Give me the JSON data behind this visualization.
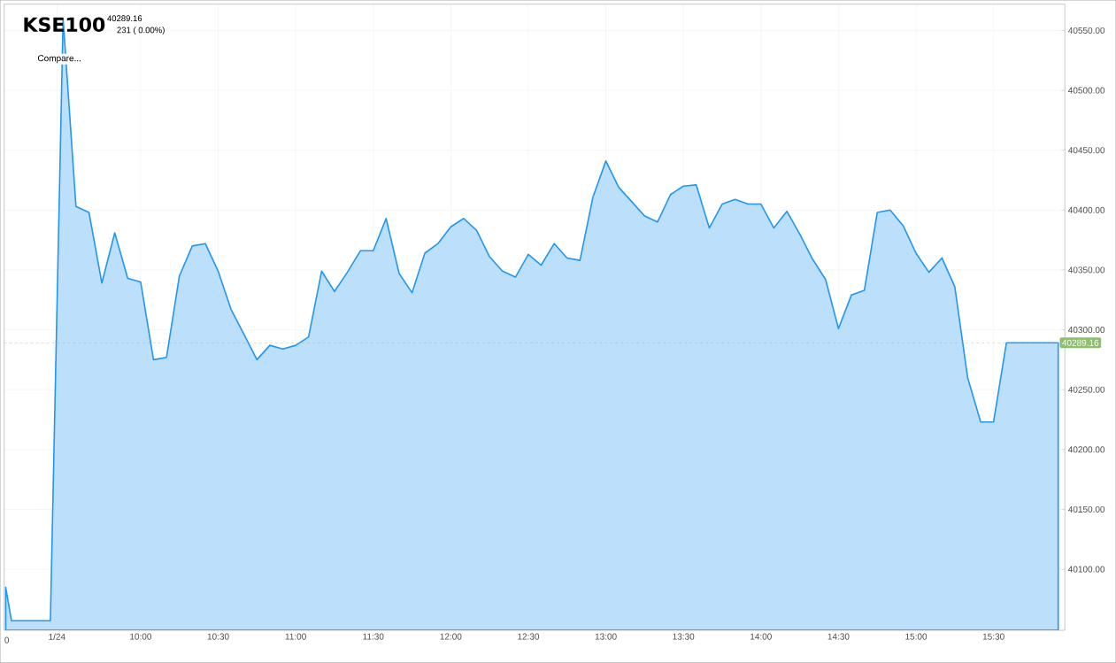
{
  "chart_data": {
    "type": "area",
    "title": "KSE100",
    "annotations": [
      "40289.16",
      "231 ( 0.00%)",
      "Compare...",
      "0"
    ],
    "x": [
      9.13,
      9.167,
      9.418,
      9.5,
      9.583,
      9.667,
      9.75,
      9.833,
      9.917,
      10,
      10.083,
      10.167,
      10.25,
      10.333,
      10.417,
      10.5,
      10.583,
      10.667,
      10.75,
      10.833,
      10.917,
      11,
      11.083,
      11.167,
      11.25,
      11.333,
      11.417,
      11.5,
      11.583,
      11.667,
      11.75,
      11.833,
      11.917,
      12,
      12.083,
      12.167,
      12.25,
      12.333,
      12.417,
      12.5,
      12.583,
      12.667,
      12.75,
      12.833,
      12.917,
      13,
      13.083,
      13.167,
      13.25,
      13.333,
      13.417,
      13.5,
      13.583,
      13.667,
      13.75,
      13.833,
      13.917,
      14,
      14.083,
      14.167,
      14.25,
      14.333,
      14.417,
      14.5,
      14.583,
      14.667,
      14.75,
      14.833,
      14.917,
      15,
      15.083,
      15.167,
      15.25,
      15.333,
      15.417,
      15.5,
      15.583,
      15.667,
      15.75,
      15.833,
      15.917
    ],
    "series": [
      {
        "color": "#bcdffb",
        "values": [
          40085,
          40057,
          40057,
          40560,
          40403,
          40398,
          40339,
          40381,
          40343,
          40340,
          40275,
          40277,
          40345,
          40370,
          40372,
          40349,
          40317,
          40296,
          40275,
          40287,
          40284,
          40287,
          40294,
          40349,
          40332,
          40348,
          40366,
          40366,
          40393,
          40347,
          40331,
          40364,
          40372,
          40386,
          40393,
          40383,
          40361,
          40349,
          40344,
          40363,
          40354,
          40372,
          40360,
          40358,
          40411,
          40441,
          40419,
          40407,
          40395,
          40390,
          40413,
          40420,
          40421,
          40385,
          40405,
          40409,
          40405,
          40405,
          40385,
          40399,
          40380,
          40359,
          40342,
          40301,
          40329,
          40333,
          40398,
          40400,
          40387,
          40364,
          40348,
          40360,
          40336,
          40260,
          40223,
          40223,
          40289.16,
          40289.16,
          40289.16,
          40289.16,
          40289.16
        ]
      }
    ],
    "xlim": [
      9.12,
      15.96
    ],
    "ylim": [
      40049,
      40572
    ],
    "xticks": [
      {
        "value": 9.46,
        "label": "1/24"
      },
      {
        "value": 10,
        "label": "10:00"
      },
      {
        "value": 10.5,
        "label": "10:30"
      },
      {
        "value": 11,
        "label": "11:00"
      },
      {
        "value": 11.5,
        "label": "11:30"
      },
      {
        "value": 12,
        "label": "12:00"
      },
      {
        "value": 12.5,
        "label": "12:30"
      },
      {
        "value": 13,
        "label": "13:00"
      },
      {
        "value": 13.5,
        "label": "13:30"
      },
      {
        "value": 14,
        "label": "14:00"
      },
      {
        "value": 14.5,
        "label": "14:30"
      },
      {
        "value": 15,
        "label": "15:00"
      },
      {
        "value": 15.5,
        "label": "15:30"
      }
    ],
    "yticks": [
      {
        "value": 40100,
        "label": "40100.00"
      },
      {
        "value": 40150,
        "label": "40150.00"
      },
      {
        "value": 40200,
        "label": "40200.00"
      },
      {
        "value": 40250,
        "label": "40250.00"
      },
      {
        "value": 40300,
        "label": "40300.00"
      },
      {
        "value": 40350,
        "label": "40350.00"
      },
      {
        "value": 40400,
        "label": "40400.00"
      },
      {
        "value": 40450,
        "label": "40450.00"
      },
      {
        "value": 40500,
        "label": "40500.00"
      },
      {
        "value": 40550,
        "label": "40550.00"
      }
    ],
    "grid": true,
    "ref_lines": [
      {
        "axis": "y",
        "value": 40289.16,
        "label": "40289.16",
        "color": "#8cbf6e",
        "line_style": "dashed"
      }
    ]
  }
}
